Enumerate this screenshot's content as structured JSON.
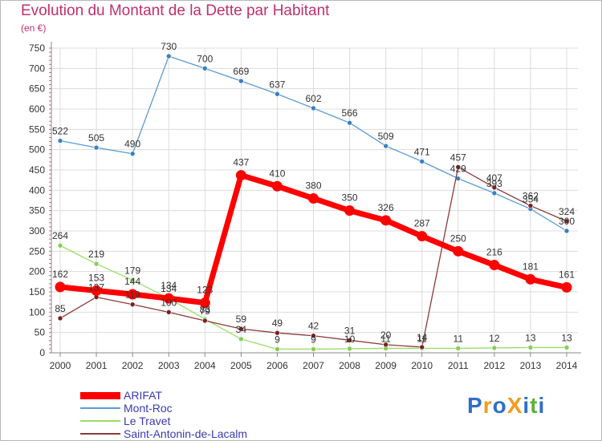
{
  "chart_data": {
    "type": "line",
    "title": "Evolution du Montant de la Dette par Habitant",
    "unit_label": "(en €)",
    "xlabel": "",
    "ylabel": "",
    "ylim": [
      0,
      750
    ],
    "y_ticks": [
      0,
      50,
      100,
      150,
      200,
      250,
      300,
      350,
      400,
      450,
      500,
      550,
      600,
      650,
      700,
      750
    ],
    "grid": true,
    "categories": [
      "2000",
      "2001",
      "2002",
      "2003",
      "2004",
      "2005",
      "2006",
      "2007",
      "2008",
      "2009",
      "2010",
      "2011",
      "2012",
      "2013",
      "2014"
    ],
    "series": [
      {
        "name": "Mont-Roc",
        "color": "#5b9bd5",
        "point_color": "#3a7fc1",
        "width": "thin",
        "values": [
          522,
          505,
          490,
          730,
          700,
          669,
          637,
          602,
          566,
          509,
          471,
          429,
          393,
          354,
          300
        ],
        "labels": [
          "522",
          "505",
          "490",
          "730",
          "700",
          "669",
          "637",
          "602",
          "566",
          "509",
          "471",
          "429",
          "393",
          "354",
          "300"
        ]
      },
      {
        "name": "Le Travet",
        "color": "#99dd66",
        "point_color": "#88cc55",
        "width": "thin",
        "values": [
          264,
          219,
          179,
          134,
          83,
          34,
          9,
          9,
          10,
          11,
          11,
          11,
          12,
          13,
          13
        ],
        "labels": [
          "264",
          "219",
          "179",
          "134",
          "83",
          "34",
          "9",
          "9",
          "10",
          "11",
          "11",
          "11",
          "12",
          "13",
          "13"
        ]
      },
      {
        "name": "Saint-Antonin-de-Lacalm",
        "color": "#8b3a3a",
        "point_color": "#7a2020",
        "width": "thin",
        "values": [
          85,
          137,
          119,
          100,
          79,
          59,
          49,
          42,
          31,
          20,
          14,
          457,
          407,
          362,
          324
        ],
        "labels": [
          "85",
          "137",
          "119",
          "100",
          "79",
          "59",
          "49",
          "42",
          "31",
          "20",
          "14",
          "457",
          "407",
          "362",
          "324"
        ]
      },
      {
        "name": "ARIFAT",
        "color": "#ff0000",
        "point_color": "#ff0000",
        "width": "thick",
        "values": [
          162,
          153,
          144,
          134,
          123,
          437,
          410,
          380,
          350,
          326,
          287,
          250,
          216,
          181,
          161
        ],
        "labels": [
          "162",
          "153",
          "144",
          "134",
          "123",
          "437",
          "410",
          "380",
          "350",
          "326",
          "287",
          "250",
          "216",
          "181",
          "161"
        ]
      }
    ],
    "legend_order": [
      "ARIFAT",
      "Mont-Roc",
      "Le Travet",
      "Saint-Antonin-de-Lacalm"
    ],
    "legend_position": "bottom-left"
  },
  "logo": {
    "text": "ProXiti",
    "letters": [
      "P",
      "r",
      "o",
      "X",
      "i",
      "t",
      "i"
    ],
    "letter_colors": [
      "#2f6fc7",
      "#f29b1d",
      "#2f6fc7",
      "#f29b1d",
      "#2f6fc7",
      "#59b33b",
      "#2f6fc7"
    ]
  }
}
